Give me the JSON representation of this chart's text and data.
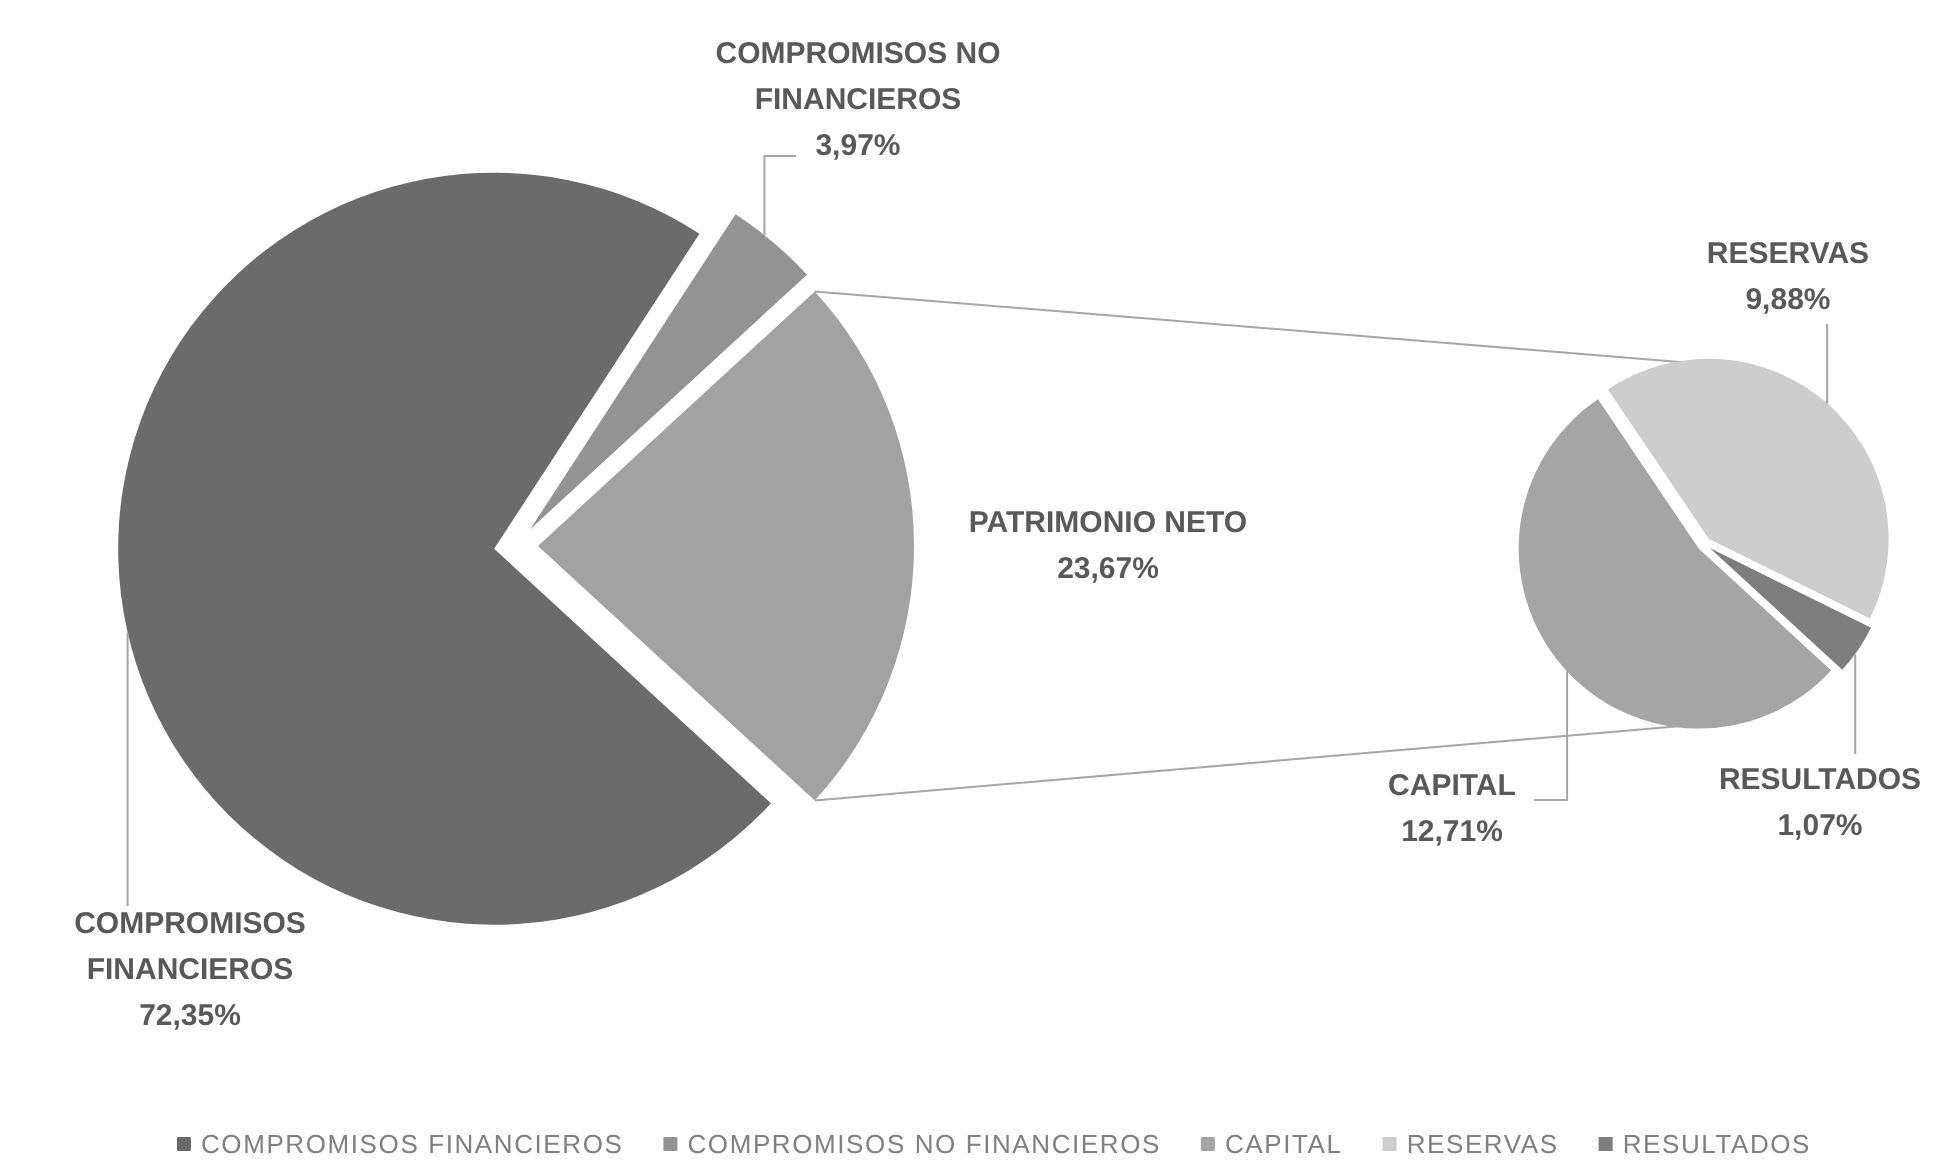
{
  "chart_data": [
    {
      "type": "pie",
      "categories": [
        "COMPROMISOS FINANCIEROS",
        "COMPROMISOS NO FINANCIEROS",
        "PATRIMONIO NETO"
      ],
      "values": [
        72.35,
        3.97,
        23.67
      ],
      "value_labels": [
        "72,35%",
        "3,97%",
        "23,67%"
      ],
      "colors": [
        "#6b6b6b",
        "#939393",
        "#a2a2a2"
      ],
      "legend": "bottom"
    },
    {
      "type": "pie",
      "categories": [
        "CAPITAL",
        "RESERVAS",
        "RESULTADOS"
      ],
      "values": [
        12.71,
        9.88,
        1.07
      ],
      "value_labels": [
        "12,71%",
        "9,88%",
        "1,07%"
      ],
      "colors": [
        "#a5a5a5",
        "#cdcdcd",
        "#7e7e7e"
      ],
      "legend": "bottom"
    }
  ]
}
